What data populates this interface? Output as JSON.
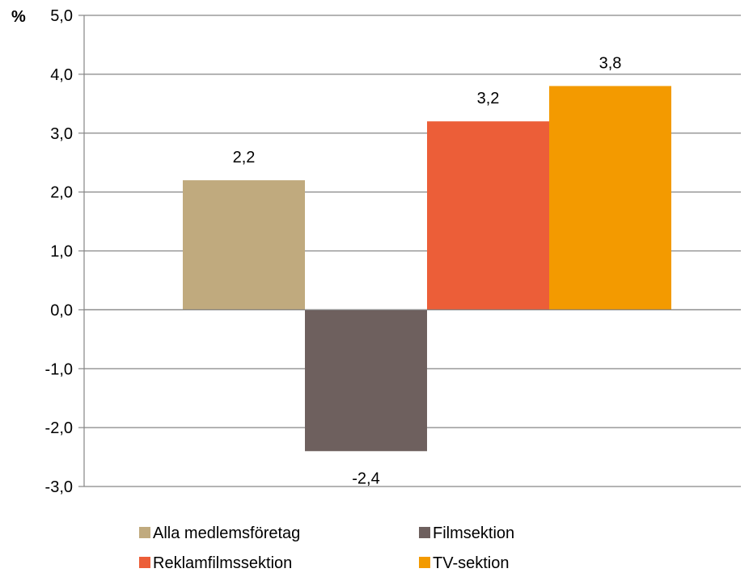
{
  "chart_data": {
    "type": "bar",
    "unit_label": "%",
    "categories": [
      "Alla medlemsföretag",
      "Filmsektion",
      "Reklamfilmssektion",
      "TV-sektion"
    ],
    "values": [
      2.2,
      -2.4,
      3.2,
      3.8
    ],
    "data_labels": [
      "2,2",
      "-2,4",
      "3,2",
      "3,8"
    ],
    "colors": [
      "#C0AA7E",
      "#6E605E",
      "#EC5E38",
      "#F39A00"
    ],
    "ylim": [
      -3.0,
      5.0
    ],
    "yticks": [
      5.0,
      4.0,
      3.0,
      2.0,
      1.0,
      0.0,
      -1.0,
      -2.0,
      -3.0
    ],
    "ytick_labels": [
      "5,0",
      "4,0",
      "3,0",
      "2,0",
      "1,0",
      "0,0",
      "-1,0",
      "-2,0",
      "-3,0"
    ],
    "grid": true,
    "gridline_color": "#868686",
    "legend": {
      "placement": "bottom",
      "entries": [
        "Alla medlemsföretag",
        "Filmsektion",
        "Reklamfilmssektion",
        "TV-sektion"
      ]
    }
  }
}
